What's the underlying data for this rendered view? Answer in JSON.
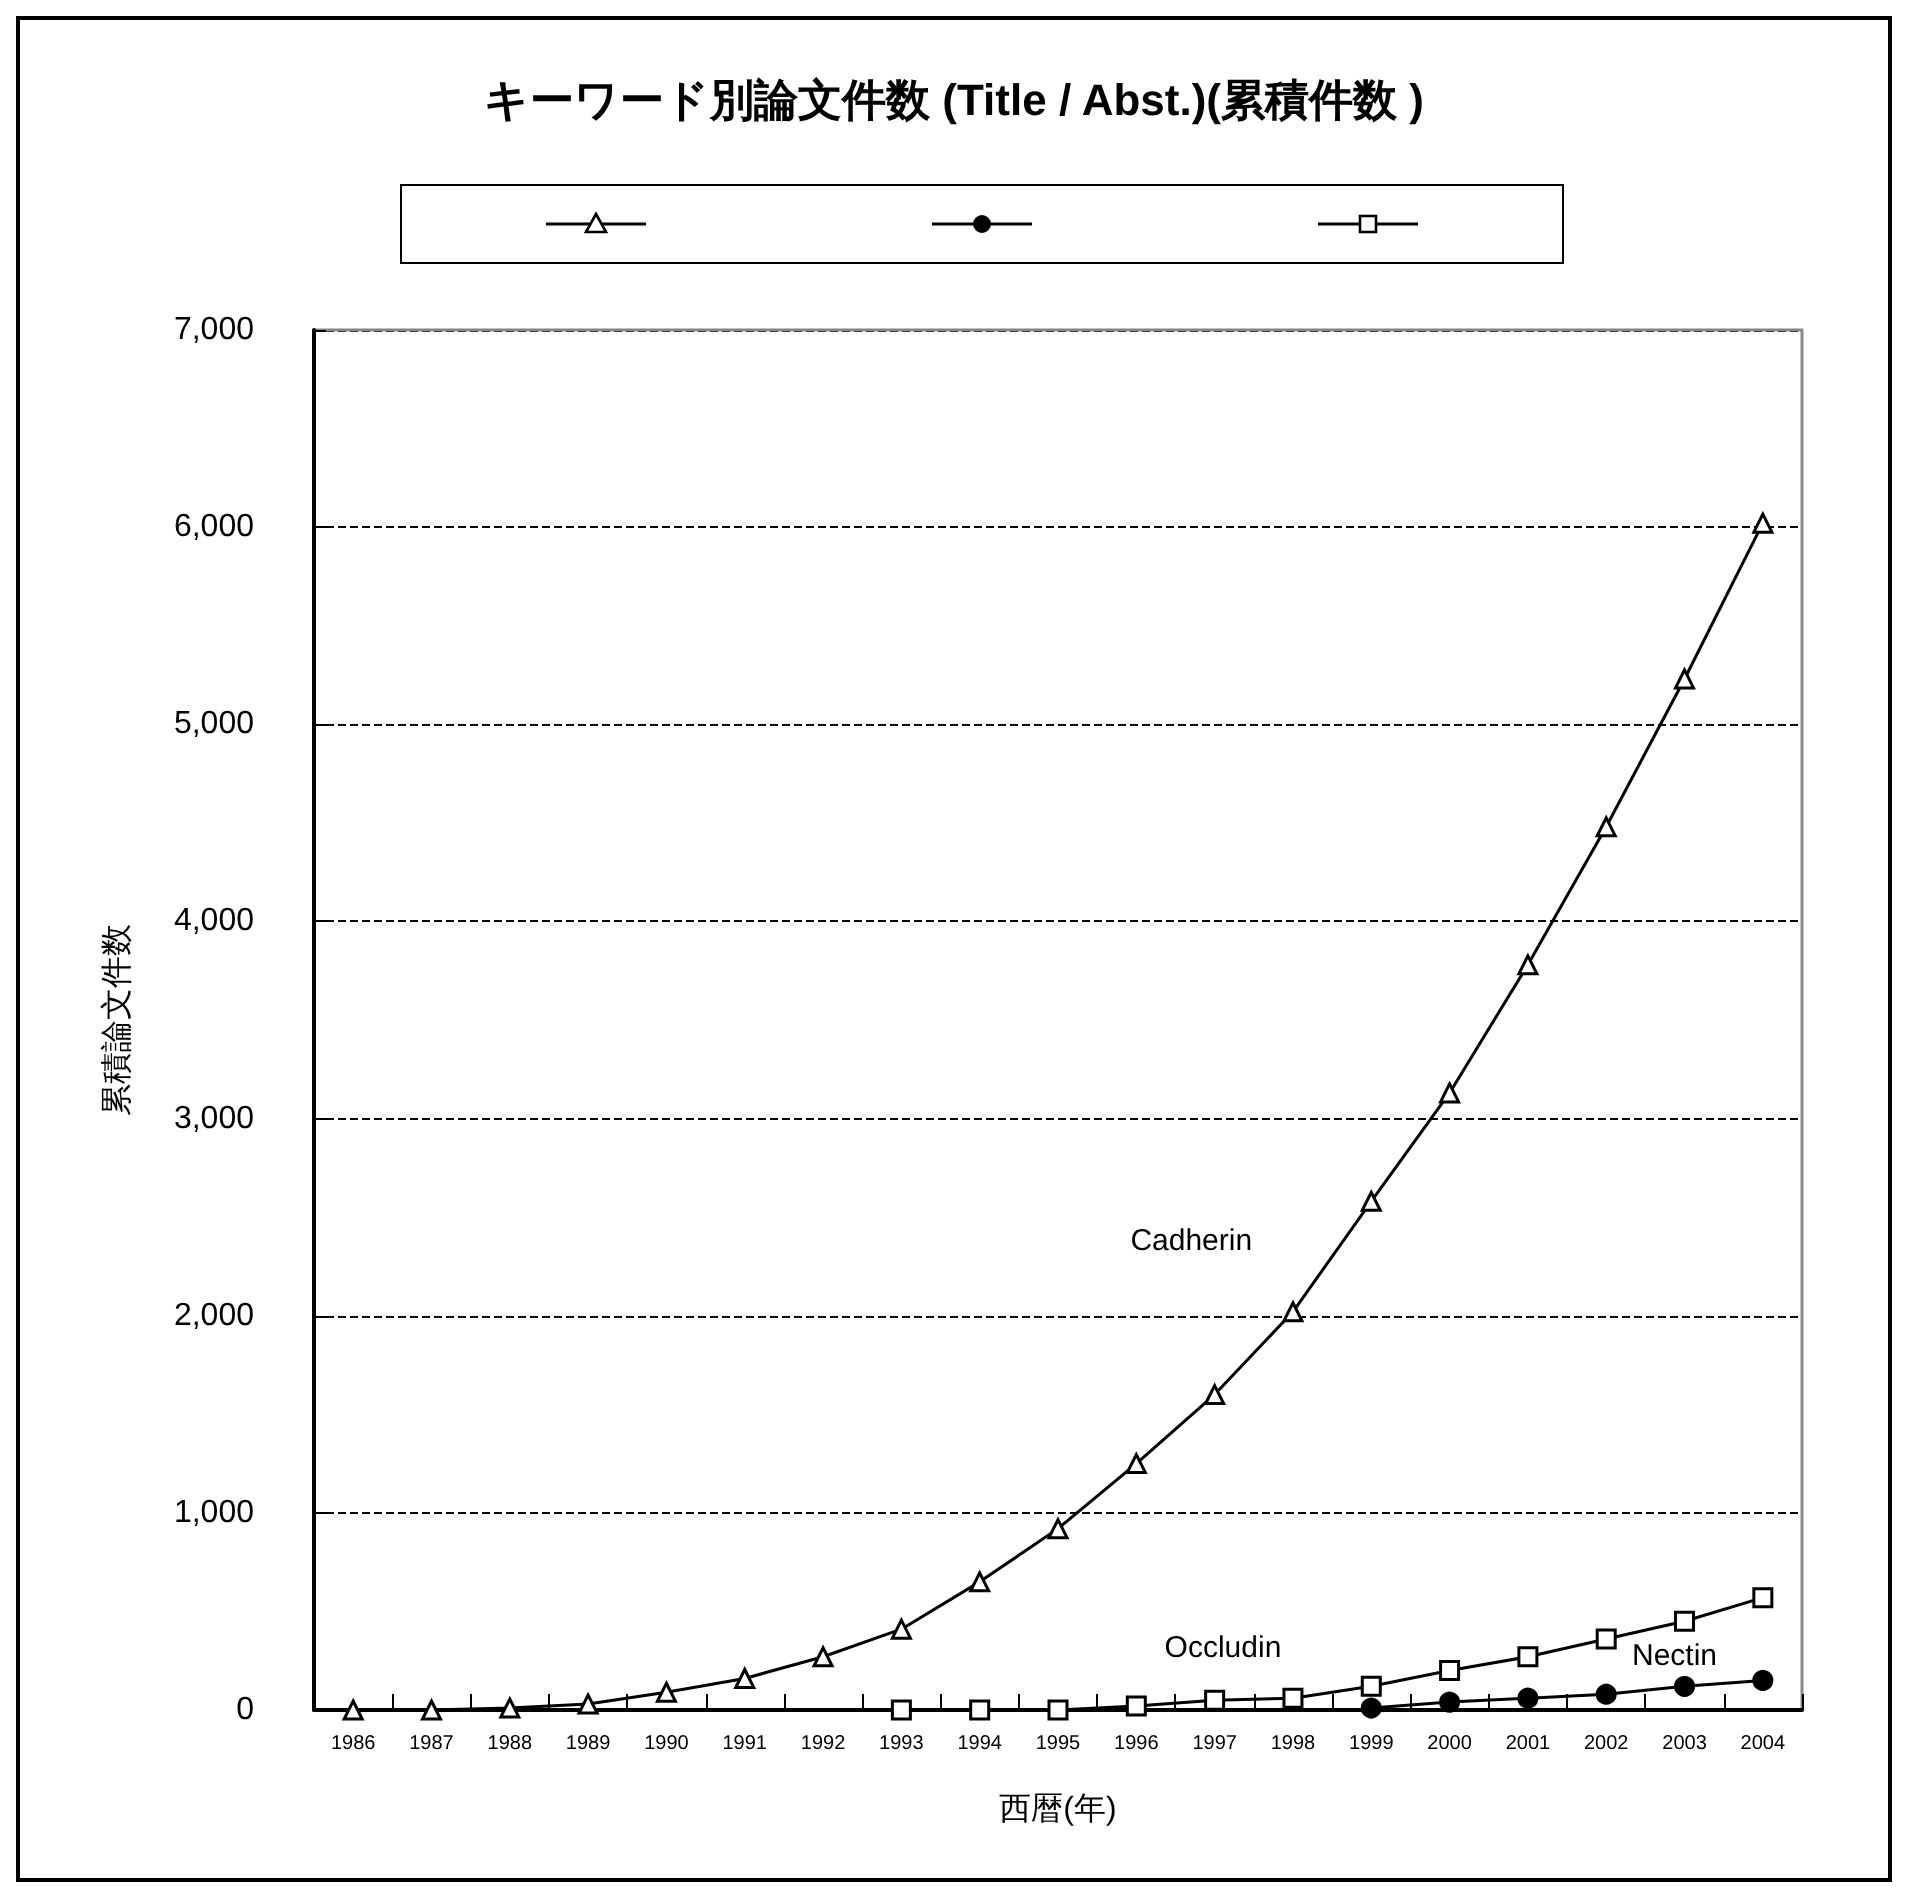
{
  "chart_data": {
    "type": "line",
    "title": "キーワード別論文件数 (Title / Abst.)(累積件数 )",
    "xlabel": "西暦(年)",
    "ylabel": "累積論文件数",
    "categories": [
      "1986",
      "1987",
      "1988",
      "1989",
      "1990",
      "1991",
      "1992",
      "1993",
      "1994",
      "1995",
      "1996",
      "1997",
      "1998",
      "1999",
      "2000",
      "2001",
      "2002",
      "2003",
      "2004"
    ],
    "series": [
      {
        "name": "Cadherin",
        "color": "#000000",
        "marker": "triangle",
        "values": [
          0,
          0,
          10,
          30,
          90,
          160,
          270,
          410,
          650,
          920,
          1250,
          1600,
          2020,
          2580,
          3130,
          3780,
          4480,
          5230,
          6020
        ]
      },
      {
        "name": "Nectin",
        "color": "#000000",
        "marker": "circle",
        "values": [
          null,
          null,
          null,
          null,
          null,
          null,
          null,
          null,
          null,
          null,
          null,
          null,
          null,
          10,
          40,
          60,
          80,
          120,
          150
        ]
      },
      {
        "name": "Occludin",
        "color": "#000000",
        "marker": "square",
        "values": [
          null,
          null,
          null,
          null,
          null,
          null,
          null,
          0,
          0,
          0,
          20,
          50,
          60,
          120,
          200,
          270,
          360,
          450,
          570
        ]
      }
    ],
    "ylim": [
      0,
      7000
    ],
    "yticks": [
      0,
      {
        "value": 1000,
        "label": "1,000"
      },
      {
        "value": 2000,
        "label": "2,000"
      },
      {
        "value": 3000,
        "label": "3,000"
      },
      {
        "value": 4000,
        "label": "4,000"
      },
      {
        "value": 5000,
        "label": "5,000"
      },
      {
        "value": 6000,
        "label": "6,000"
      },
      {
        "value": 7000,
        "label": "7,000"
      }
    ],
    "grid": "y",
    "line_style": "solid"
  }
}
